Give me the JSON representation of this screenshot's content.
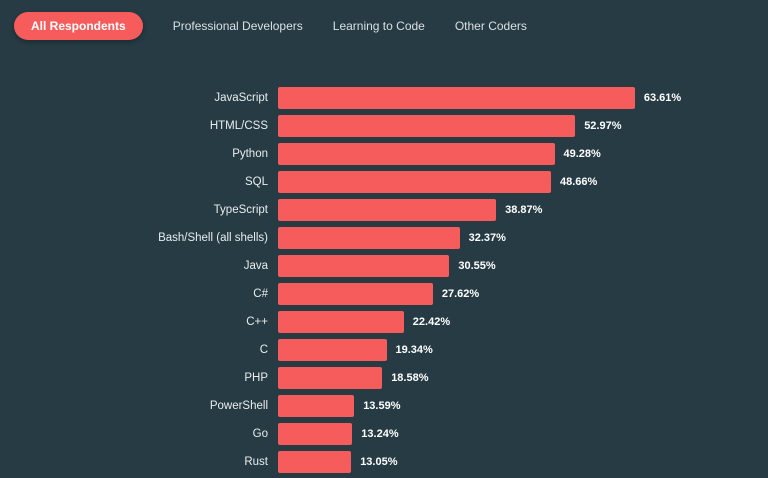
{
  "colors": {
    "background": "#263b44",
    "accent": "#f65c5c",
    "tab_inactive_text": "#d9e0e2",
    "category_label_text": "#e9eded",
    "value_label_text": "#ffffff"
  },
  "tabs": [
    {
      "label": "All Respondents",
      "active": true
    },
    {
      "label": "Professional Developers",
      "active": false
    },
    {
      "label": "Learning to Code",
      "active": false
    },
    {
      "label": "Other Coders",
      "active": false
    }
  ],
  "chart_data": {
    "type": "bar",
    "orientation": "horizontal",
    "title": "",
    "xlabel": "",
    "ylabel": "",
    "xlim": [
      0,
      70
    ],
    "grid": false,
    "legend": false,
    "value_suffix": "%",
    "categories": [
      "JavaScript",
      "HTML/CSS",
      "Python",
      "SQL",
      "TypeScript",
      "Bash/Shell (all shells)",
      "Java",
      "C#",
      "C++",
      "C",
      "PHP",
      "PowerShell",
      "Go",
      "Rust"
    ],
    "values": [
      63.61,
      52.97,
      49.28,
      48.66,
      38.87,
      32.37,
      30.55,
      27.62,
      22.42,
      19.34,
      18.58,
      13.59,
      13.24,
      13.05
    ],
    "value_labels": [
      "63.61%",
      "52.97%",
      "49.28%",
      "48.66%",
      "38.87%",
      "32.37%",
      "30.55%",
      "27.62%",
      "22.42%",
      "19.34%",
      "18.58%",
      "13.59%",
      "13.24%",
      "13.05%"
    ]
  }
}
